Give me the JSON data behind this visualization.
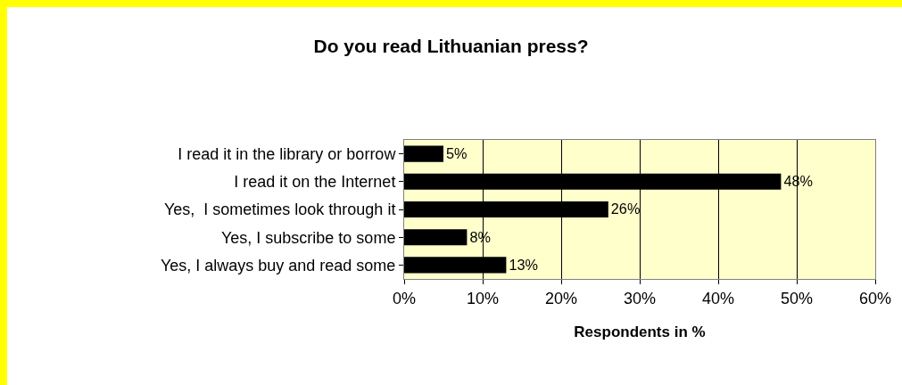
{
  "chart_data": {
    "type": "bar",
    "orientation": "horizontal",
    "title": "Do you read Lithuanian press?",
    "xlabel": "Respondents in %",
    "categories": [
      "I read it in the library or borrow",
      "I read it on the Internet",
      "Yes,  I sometimes look through it",
      "Yes, I subscribe to some",
      "Yes, I always buy and read some"
    ],
    "values": [
      5,
      48,
      26,
      8,
      13
    ],
    "value_labels": [
      "5%",
      "48%",
      "26%",
      "8%",
      "13%"
    ],
    "color": "#000000",
    "xlim": [
      0,
      60
    ],
    "xticks": [
      {
        "value": 0,
        "label": "0%"
      },
      {
        "value": 10,
        "label": "10%"
      },
      {
        "value": 20,
        "label": "20%"
      },
      {
        "value": 30,
        "label": "30%"
      },
      {
        "value": 40,
        "label": "40%"
      },
      {
        "value": 50,
        "label": "50%"
      },
      {
        "value": 60,
        "label": "60%"
      }
    ],
    "grid": "x",
    "legend": false
  }
}
